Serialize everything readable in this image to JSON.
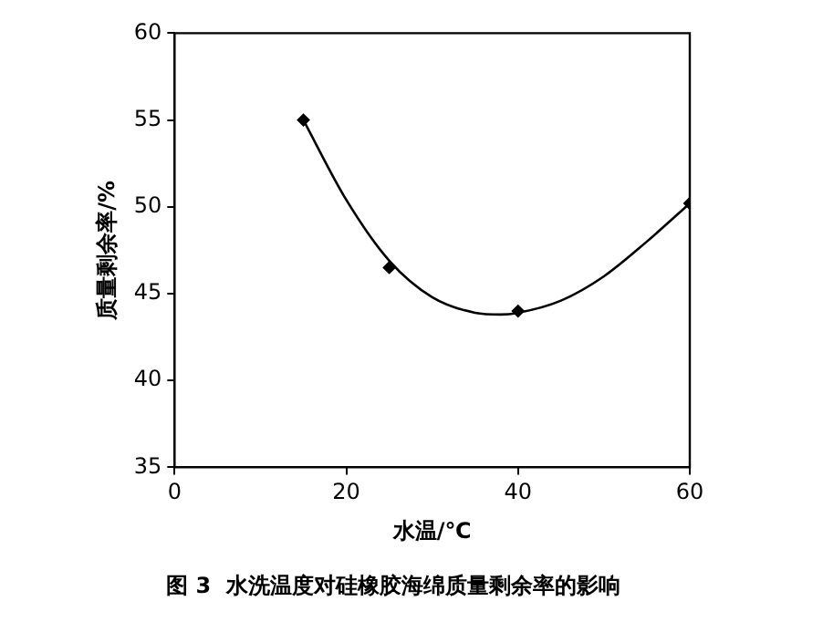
{
  "chart_data": {
    "type": "scatter",
    "xlabel": "水温/℃",
    "ylabel": "质量剩余率/%",
    "annotations": [
      "图 3  水洗温度对硅橡胶海绵质量剩余率的影响"
    ],
    "xlim": [
      0,
      60
    ],
    "xticks": [
      0,
      20,
      40,
      60
    ],
    "ylim": [
      35,
      60
    ],
    "yticks": [
      35,
      40,
      45,
      50,
      55,
      60
    ],
    "grid": false,
    "legend": false,
    "series": [
      {
        "type": "scatter",
        "color": "#000000",
        "marker": "diamond",
        "x": [
          15,
          25,
          40,
          60
        ],
        "values": [
          55,
          46.5,
          44,
          50.2
        ]
      },
      {
        "type": "line",
        "color": "#000000",
        "marker": "none",
        "line_style": "solid",
        "x": [
          15,
          20,
          25,
          30,
          35,
          38,
          40,
          45,
          50,
          55,
          60
        ],
        "values": [
          55,
          50.4,
          46.9,
          44.8,
          43.9,
          43.8,
          43.9,
          44.6,
          46,
          48,
          50.2
        ]
      }
    ]
  }
}
